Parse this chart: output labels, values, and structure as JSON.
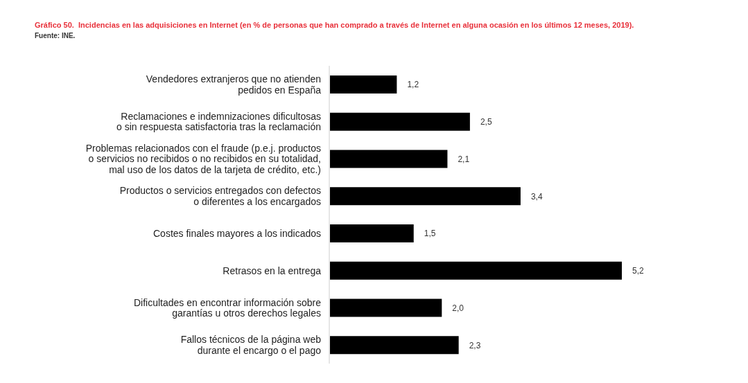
{
  "chart_data": {
    "type": "bar",
    "orientation": "horizontal",
    "title": "Gráfico 50.  Incidencias en las adquisiciones en Internet (en % de personas que han comprado a través de Internet en alguna ocasión en los últimos 12 meses, 2019).",
    "annotations": [
      "Fuente: INE."
    ],
    "categories": [
      "Vendedores extranjeros que no atienden\npedidos en España",
      "Reclamaciones e indemnizaciones dificultosas\no sin respuesta satisfactoria tras la reclamación",
      "Problemas relacionados con el fraude (p.e.j. productos\no servicios no recibidos o no recibidos en su totalidad,\nmal uso de los datos de la tarjeta de crédito, etc.)",
      "Productos o servicios entregados con defectos\no diferentes a los encargados",
      "Costes finales mayores a los indicados",
      "Retrasos en la entrega",
      "Dificultades en encontrar información sobre\ngarantías u otros derechos legales",
      "Fallos técnicos de la página web\ndurante el encargo o el pago"
    ],
    "values": [
      1.2,
      2.5,
      2.1,
      3.4,
      1.5,
      5.2,
      2.0,
      2.3
    ],
    "value_labels": [
      "1,2",
      "2,5",
      "2,1",
      "3,4",
      "1,5",
      "5,2",
      "2,0",
      "2,3"
    ],
    "color": "#000000",
    "tick_labels": "y"
  }
}
